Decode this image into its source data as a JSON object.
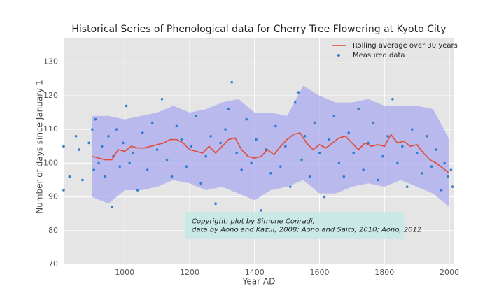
{
  "chart_data": {
    "type": "line",
    "title": "Historical Series of Phenological data for Cherry Tree Flowering at Kyoto City",
    "x_label": "Year AD",
    "y_label": "Number of days since January 1",
    "xlim": [
      812,
      2015
    ],
    "ylim": [
      70,
      137
    ],
    "xticks": [
      1000,
      1200,
      1400,
      1600,
      1800,
      2000
    ],
    "yticks": [
      70,
      80,
      90,
      100,
      110,
      120,
      130
    ],
    "grid": true,
    "legend": "upper right",
    "band": {
      "color": "#a9a9f0",
      "x": [
        900,
        950,
        1000,
        1050,
        1100,
        1150,
        1200,
        1250,
        1300,
        1350,
        1400,
        1450,
        1500,
        1550,
        1600,
        1650,
        1700,
        1750,
        1800,
        1850,
        1900,
        1950,
        2000
      ],
      "upper": [
        114,
        114,
        113,
        114,
        115,
        117,
        115,
        116,
        118,
        119,
        115,
        115,
        114,
        123,
        120,
        118,
        118,
        119,
        117,
        117,
        117,
        116,
        107
      ],
      "lower": [
        90,
        88,
        92,
        92,
        93,
        95,
        94,
        92,
        93,
        91,
        89,
        92,
        93,
        95,
        91,
        91,
        93,
        94,
        93,
        95,
        93,
        91,
        87
      ]
    },
    "series": [
      {
        "name": "Rolling average over 30 years",
        "type": "line",
        "color": "#e24a33",
        "x": [
          900,
          920,
          940,
          960,
          980,
          1000,
          1020,
          1040,
          1060,
          1080,
          1100,
          1120,
          1140,
          1160,
          1180,
          1200,
          1220,
          1240,
          1260,
          1280,
          1300,
          1320,
          1340,
          1360,
          1380,
          1400,
          1420,
          1440,
          1460,
          1480,
          1500,
          1520,
          1540,
          1560,
          1580,
          1600,
          1620,
          1640,
          1660,
          1680,
          1700,
          1720,
          1740,
          1760,
          1780,
          1800,
          1820,
          1840,
          1860,
          1880,
          1900,
          1920,
          1940,
          1960,
          1980,
          2000
        ],
        "values": [
          102,
          101.5,
          101,
          101,
          104,
          103.5,
          105,
          104.5,
          104.5,
          105,
          105.5,
          106,
          107,
          107,
          106,
          104,
          103.5,
          103,
          105,
          103,
          105,
          107,
          107.5,
          104,
          102,
          101.5,
          102,
          104,
          102.5,
          105,
          107,
          108.5,
          109,
          106,
          104,
          105.5,
          104.5,
          106,
          107.5,
          108,
          106,
          104,
          106,
          105,
          105.5,
          105,
          108.5,
          106,
          106.5,
          105,
          105.5,
          103,
          101,
          100,
          98.5,
          97
        ]
      },
      {
        "name": "Measured data",
        "type": "scatter",
        "color": "#2d7fd2",
        "x": [
          812,
          812,
          830,
          850,
          860,
          870,
          890,
          900,
          905,
          910,
          920,
          930,
          940,
          950,
          960,
          965,
          975,
          985,
          995,
          1005,
          1015,
          1025,
          1040,
          1055,
          1070,
          1085,
          1100,
          1115,
          1130,
          1145,
          1160,
          1175,
          1190,
          1205,
          1220,
          1235,
          1250,
          1265,
          1280,
          1295,
          1310,
          1320,
          1330,
          1345,
          1360,
          1375,
          1390,
          1405,
          1420,
          1435,
          1450,
          1465,
          1480,
          1495,
          1510,
          1525,
          1535,
          1545,
          1555,
          1570,
          1585,
          1600,
          1615,
          1630,
          1645,
          1660,
          1675,
          1690,
          1705,
          1720,
          1735,
          1750,
          1765,
          1780,
          1795,
          1810,
          1825,
          1840,
          1855,
          1870,
          1885,
          1900,
          1915,
          1930,
          1945,
          1960,
          1975,
          1985,
          1995,
          2005,
          2010
        ],
        "values": [
          105,
          92,
          96,
          108,
          104,
          95,
          106,
          110,
          98,
          113,
          100,
          105,
          96,
          108,
          87,
          102,
          110,
          99,
          106,
          117,
          100,
          103,
          92,
          109,
          98,
          112,
          104,
          119,
          101,
          96,
          111,
          107,
          99,
          105,
          114,
          94,
          102,
          108,
          88,
          106,
          110,
          116,
          124,
          103,
          98,
          113,
          100,
          107,
          86,
          104,
          97,
          111,
          99,
          105,
          93,
          118,
          121,
          101,
          108,
          96,
          112,
          103,
          90,
          107,
          114,
          100,
          96,
          109,
          103,
          116,
          98,
          106,
          112,
          95,
          102,
          108,
          119,
          100,
          105,
          93,
          110,
          103,
          97,
          108,
          99,
          104,
          92,
          100,
          96,
          98,
          93
        ]
      }
    ],
    "annotation": {
      "color": "#c5e8e6",
      "x": [
        1185,
        1860
      ],
      "y": [
        77.5,
        85.5
      ],
      "lines": [
        "Copyright: plot by Simone Conradi,",
        "data by Aono and Kazui, 2008; Aono and Saito, 2010; Aono, 2012"
      ]
    }
  }
}
